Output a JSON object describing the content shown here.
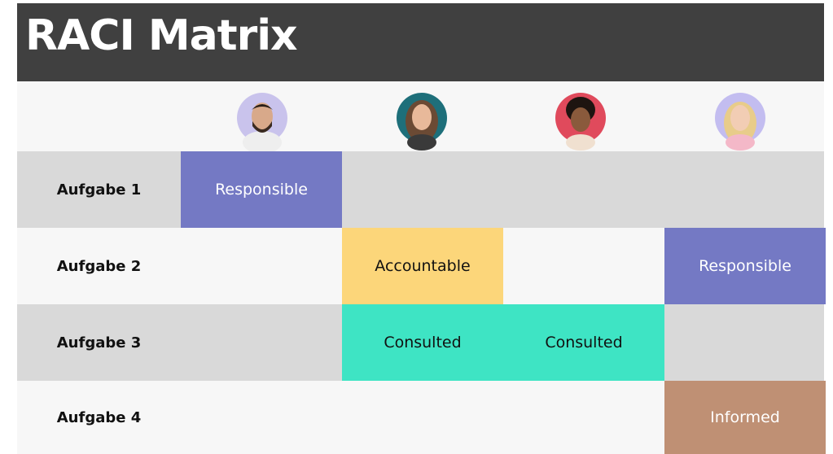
{
  "header": {
    "title": "RACI Matrix"
  },
  "table": {
    "rows": [
      {
        "label": "Aufgabe 1",
        "cells": [
          {
            "text": "Responsible",
            "color": "#7479c4"
          },
          null,
          null,
          null
        ]
      },
      {
        "label": "Aufgabe 2",
        "cells": [
          null,
          {
            "text": "Accountable",
            "color": "#fcd67a"
          },
          null,
          {
            "text": "Responsible",
            "color": "#7479c4"
          }
        ]
      },
      {
        "label": "Aufgabe 3",
        "cells": [
          null,
          {
            "text": "Consulted",
            "color": "#3ee4c4"
          },
          {
            "text": "Consulted",
            "color": "#3ee4c4"
          },
          null
        ]
      },
      {
        "label": "Aufgabe 4",
        "cells": [
          null,
          null,
          null,
          {
            "text": "Informed",
            "color": "#bf9074"
          }
        ]
      }
    ]
  }
}
